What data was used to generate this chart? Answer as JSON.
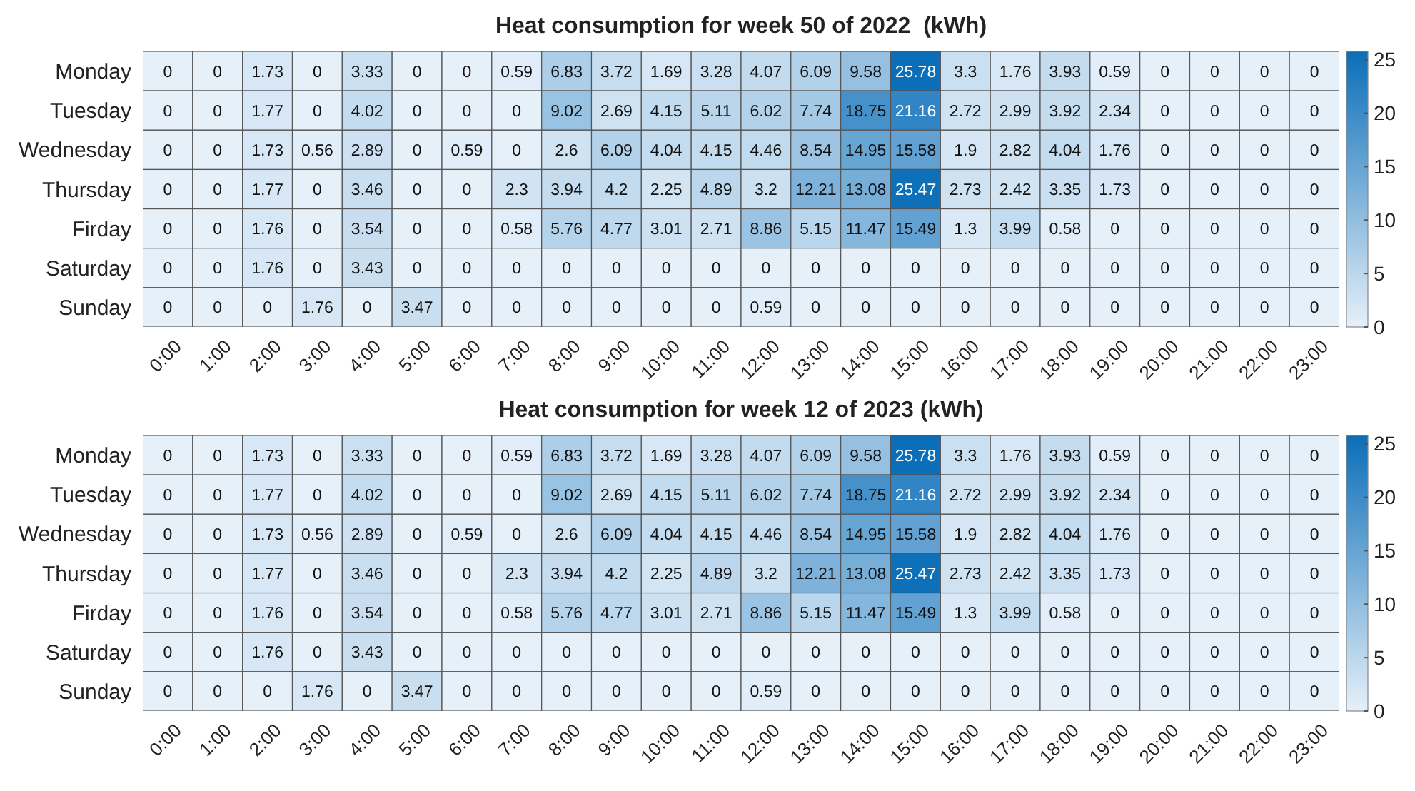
{
  "chart_data": [
    {
      "type": "heatmap",
      "title": "Heat consumption for week 50 of 2022  (kWh)",
      "data_labels": true,
      "categories": [
        "0:00",
        "1:00",
        "2:00",
        "3:00",
        "4:00",
        "5:00",
        "6:00",
        "7:00",
        "8:00",
        "9:00",
        "10:00",
        "11:00",
        "12:00",
        "13:00",
        "14:00",
        "15:00",
        "16:00",
        "17:00",
        "18:00",
        "19:00",
        "20:00",
        "21:00",
        "22:00",
        "23:00"
      ],
      "y_categories": [
        "Monday",
        "Tuesday",
        "Wednesday",
        "Thursday",
        "Firday",
        "Saturday",
        "Sunday"
      ],
      "cells": [
        [
          0,
          0,
          1.73,
          0,
          3.33,
          0,
          0,
          0.59,
          6.83,
          3.72,
          1.69,
          3.28,
          4.07,
          6.09,
          9.58,
          25.78,
          3.3,
          1.76,
          3.93,
          0.59,
          0,
          0,
          0,
          0
        ],
        [
          0,
          0,
          1.77,
          0,
          4.02,
          0,
          0,
          0,
          9.02,
          2.69,
          4.15,
          5.11,
          6.02,
          7.74,
          18.75,
          21.16,
          2.72,
          2.99,
          3.92,
          2.34,
          0,
          0,
          0,
          0
        ],
        [
          0,
          0,
          1.73,
          0.56,
          2.89,
          0,
          0.59,
          0,
          2.6,
          6.09,
          4.04,
          4.15,
          4.46,
          8.54,
          14.95,
          15.58,
          1.9,
          2.82,
          4.04,
          1.76,
          0,
          0,
          0,
          0
        ],
        [
          0,
          0,
          1.77,
          0,
          3.46,
          0,
          0,
          2.3,
          3.94,
          4.2,
          2.25,
          4.89,
          3.2,
          12.21,
          13.08,
          25.47,
          2.73,
          2.42,
          3.35,
          1.73,
          0,
          0,
          0,
          0
        ],
        [
          0,
          0,
          1.76,
          0,
          3.54,
          0,
          0,
          0.58,
          5.76,
          4.77,
          3.01,
          2.71,
          8.86,
          5.15,
          11.47,
          15.49,
          1.3,
          3.99,
          0.58,
          0,
          0,
          0,
          0,
          0
        ],
        [
          0,
          0,
          1.76,
          0,
          3.43,
          0,
          0,
          0,
          0,
          0,
          0,
          0,
          0,
          0,
          0,
          0,
          0,
          0,
          0,
          0,
          0,
          0,
          0,
          0
        ],
        [
          0,
          0,
          0,
          1.76,
          0,
          3.47,
          0,
          0,
          0,
          0,
          0,
          0,
          0.59,
          0,
          0,
          0,
          0,
          0,
          0,
          0,
          0,
          0,
          0,
          0
        ]
      ],
      "clim": [
        0,
        25.78
      ],
      "cticks": [
        0,
        5,
        10,
        15,
        20,
        25
      ]
    },
    {
      "type": "heatmap",
      "title": "Heat consumption for week 12 of 2023 (kWh)",
      "data_labels": true,
      "categories": [
        "0:00",
        "1:00",
        "2:00",
        "3:00",
        "4:00",
        "5:00",
        "6:00",
        "7:00",
        "8:00",
        "9:00",
        "10:00",
        "11:00",
        "12:00",
        "13:00",
        "14:00",
        "15:00",
        "16:00",
        "17:00",
        "18:00",
        "19:00",
        "20:00",
        "21:00",
        "22:00",
        "23:00"
      ],
      "y_categories": [
        "Monday",
        "Tuesday",
        "Wednesday",
        "Thursday",
        "Firday",
        "Saturday",
        "Sunday"
      ],
      "cells": [
        [
          0,
          0,
          1.73,
          0,
          3.33,
          0,
          0,
          0.59,
          6.83,
          3.72,
          1.69,
          3.28,
          4.07,
          6.09,
          9.58,
          25.78,
          3.3,
          1.76,
          3.93,
          0.59,
          0,
          0,
          0,
          0
        ],
        [
          0,
          0,
          1.77,
          0,
          4.02,
          0,
          0,
          0,
          9.02,
          2.69,
          4.15,
          5.11,
          6.02,
          7.74,
          18.75,
          21.16,
          2.72,
          2.99,
          3.92,
          2.34,
          0,
          0,
          0,
          0
        ],
        [
          0,
          0,
          1.73,
          0.56,
          2.89,
          0,
          0.59,
          0,
          2.6,
          6.09,
          4.04,
          4.15,
          4.46,
          8.54,
          14.95,
          15.58,
          1.9,
          2.82,
          4.04,
          1.76,
          0,
          0,
          0,
          0
        ],
        [
          0,
          0,
          1.77,
          0,
          3.46,
          0,
          0,
          2.3,
          3.94,
          4.2,
          2.25,
          4.89,
          3.2,
          12.21,
          13.08,
          25.47,
          2.73,
          2.42,
          3.35,
          1.73,
          0,
          0,
          0,
          0
        ],
        [
          0,
          0,
          1.76,
          0,
          3.54,
          0,
          0,
          0.58,
          5.76,
          4.77,
          3.01,
          2.71,
          8.86,
          5.15,
          11.47,
          15.49,
          1.3,
          3.99,
          0.58,
          0,
          0,
          0,
          0,
          0
        ],
        [
          0,
          0,
          1.76,
          0,
          3.43,
          0,
          0,
          0,
          0,
          0,
          0,
          0,
          0,
          0,
          0,
          0,
          0,
          0,
          0,
          0,
          0,
          0,
          0,
          0
        ],
        [
          0,
          0,
          0,
          1.76,
          0,
          3.47,
          0,
          0,
          0,
          0,
          0,
          0,
          0.59,
          0,
          0,
          0,
          0,
          0,
          0,
          0,
          0,
          0,
          0,
          0
        ]
      ],
      "clim": [
        0,
        25.78
      ],
      "cticks": [
        0,
        5,
        10,
        15,
        20,
        25
      ]
    }
  ]
}
